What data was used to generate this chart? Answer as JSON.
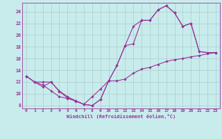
{
  "xlabel": "Windchill (Refroidissement éolien,°C)",
  "background_color": "#c8ecec",
  "line_color": "#993399",
  "grid_color": "#aacccc",
  "xlim": [
    -0.5,
    23.5
  ],
  "ylim": [
    7.5,
    25.5
  ],
  "yticks": [
    8,
    10,
    12,
    14,
    16,
    18,
    20,
    22,
    24
  ],
  "xticks": [
    0,
    1,
    2,
    3,
    4,
    5,
    6,
    7,
    8,
    9,
    10,
    11,
    12,
    13,
    14,
    15,
    16,
    17,
    18,
    19,
    20,
    21,
    22,
    23
  ],
  "line1_x": [
    0,
    1,
    2,
    3,
    4,
    5,
    6,
    7,
    8,
    9,
    10,
    11,
    12,
    13,
    14,
    15,
    16,
    17,
    18,
    19,
    20,
    21,
    22,
    23
  ],
  "line1_y": [
    13.0,
    12.0,
    11.2,
    12.0,
    10.4,
    9.3,
    8.7,
    8.2,
    8.0,
    9.0,
    12.2,
    14.8,
    18.2,
    18.5,
    22.5,
    22.5,
    24.3,
    25.0,
    23.8,
    21.5,
    22.0,
    17.2,
    17.0,
    17.0
  ],
  "line2_x": [
    0,
    1,
    2,
    3,
    4,
    5,
    6,
    7,
    8,
    9,
    10,
    11,
    12,
    13,
    14,
    15,
    16,
    17,
    18,
    19,
    20,
    21,
    22,
    23
  ],
  "line2_y": [
    13.0,
    12.0,
    11.5,
    10.5,
    9.5,
    9.2,
    8.8,
    8.2,
    9.5,
    10.8,
    12.2,
    12.2,
    12.5,
    13.5,
    14.2,
    14.5,
    15.0,
    15.5,
    15.8,
    16.0,
    16.3,
    16.5,
    16.8,
    17.0
  ],
  "line3_x": [
    0,
    1,
    2,
    3,
    4,
    5,
    6,
    7,
    8,
    9,
    10,
    11,
    12,
    13,
    14,
    15,
    16,
    17,
    18,
    19,
    20,
    21,
    22,
    23
  ],
  "line3_y": [
    13.0,
    12.0,
    12.0,
    12.0,
    10.5,
    9.5,
    8.8,
    8.2,
    8.0,
    9.0,
    12.2,
    14.8,
    18.2,
    21.5,
    22.5,
    22.5,
    24.3,
    25.0,
    23.8,
    21.5,
    22.0,
    17.2,
    17.0,
    17.0
  ]
}
